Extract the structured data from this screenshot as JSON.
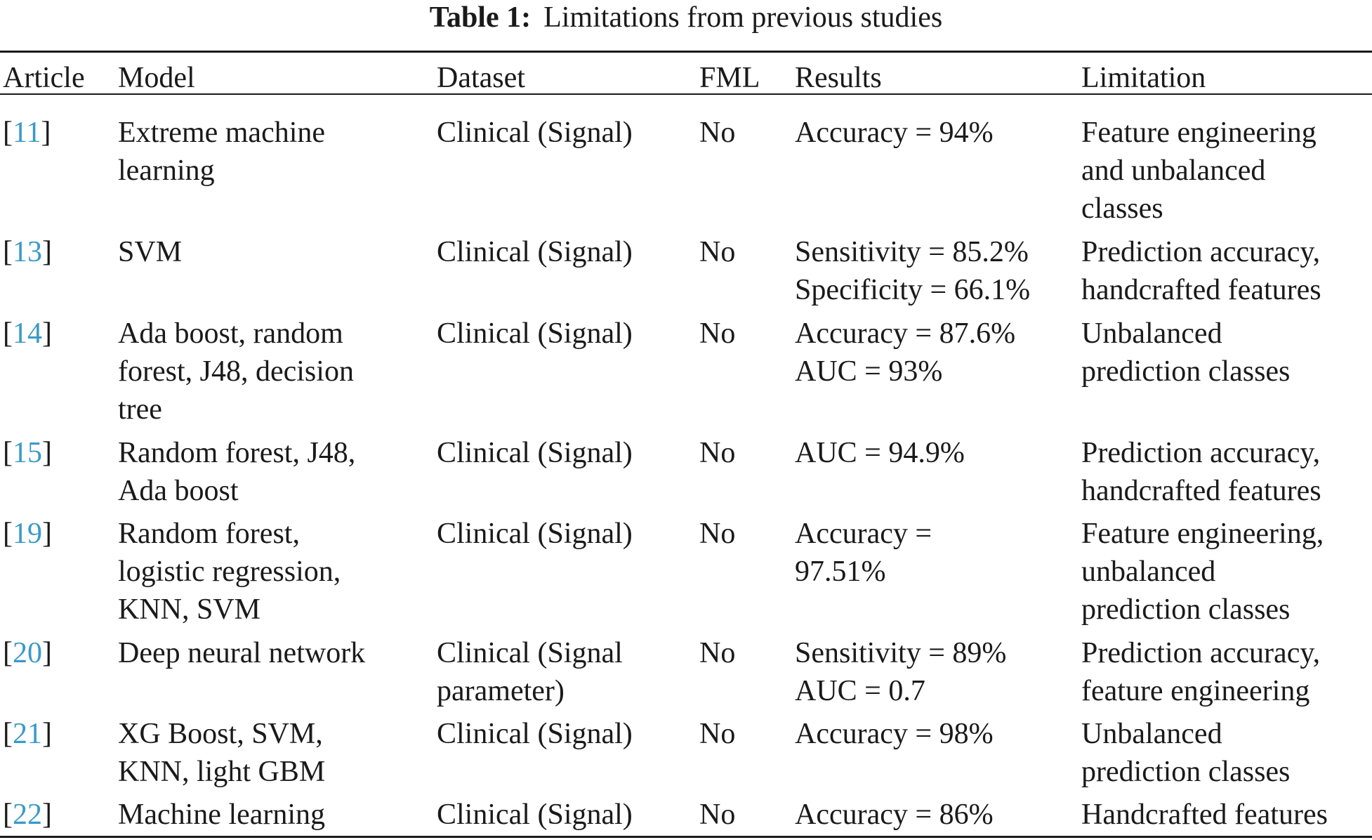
{
  "caption": {
    "label": "Table 1:",
    "title": "Limitations from previous studies"
  },
  "headers": [
    "Article",
    "Model",
    "Dataset",
    "FML",
    "Results",
    "Limitation"
  ],
  "rows": [
    {
      "ref": "11",
      "model": "Extreme machine\nlearning",
      "dataset": "Clinical (Signal)",
      "fml": "No",
      "results": "Accuracy = 94%",
      "limitation": "Feature engineering\nand unbalanced\nclasses"
    },
    {
      "ref": "13",
      "model": "SVM",
      "dataset": "Clinical (Signal)",
      "fml": "No",
      "results": "Sensitivity = 85.2%\nSpecificity = 66.1%",
      "limitation": "Prediction accuracy,\nhandcrafted features"
    },
    {
      "ref": "14",
      "model": "Ada boost, random\nforest, J48, decision\ntree",
      "dataset": "Clinical (Signal)",
      "fml": "No",
      "results": "Accuracy = 87.6%\nAUC = 93%",
      "limitation": "Unbalanced\nprediction classes"
    },
    {
      "ref": "15",
      "model": "Random forest, J48,\nAda boost",
      "dataset": "Clinical (Signal)",
      "fml": "No",
      "results": "AUC = 94.9%",
      "limitation": "Prediction accuracy,\nhandcrafted features"
    },
    {
      "ref": "19",
      "model": "Random forest,\nlogistic regression,\nKNN, SVM",
      "dataset": "Clinical (Signal)",
      "fml": "No",
      "results": "Accuracy =\n97.51%",
      "limitation": "Feature engineering,\nunbalanced\nprediction classes"
    },
    {
      "ref": "20",
      "model": "Deep neural network",
      "dataset": "Clinical (Signal\nparameter)",
      "fml": "No",
      "results": "Sensitivity = 89%\nAUC = 0.7",
      "limitation": "Prediction accuracy,\nfeature engineering"
    },
    {
      "ref": "21",
      "model": "XG Boost, SVM,\nKNN, light GBM",
      "dataset": "Clinical (Signal)",
      "fml": "No",
      "results": "Accuracy = 98%",
      "limitation": "Unbalanced\nprediction classes"
    },
    {
      "ref": "22",
      "model": "Machine learning",
      "dataset": "Clinical (Signal)",
      "fml": "No",
      "results": "Accuracy = 86%",
      "limitation": "Handcrafted features"
    }
  ]
}
